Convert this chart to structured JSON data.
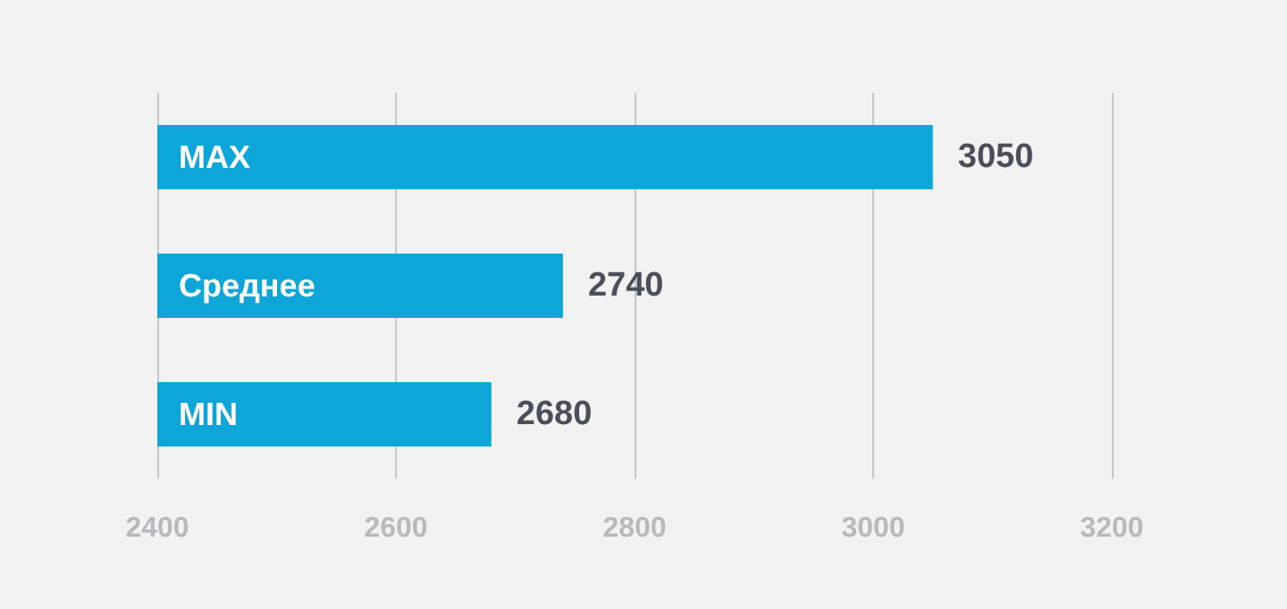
{
  "chart_data": {
    "type": "bar",
    "orientation": "horizontal",
    "categories": [
      "MAX",
      "Среднее",
      "MIN"
    ],
    "values": [
      3050,
      2740,
      2680
    ],
    "color": "#0ea5d8",
    "xlim": [
      2400,
      3200
    ],
    "xticks": [
      2400,
      2600,
      2800,
      3000,
      3200
    ],
    "grid": "x",
    "data_labels": true
  }
}
